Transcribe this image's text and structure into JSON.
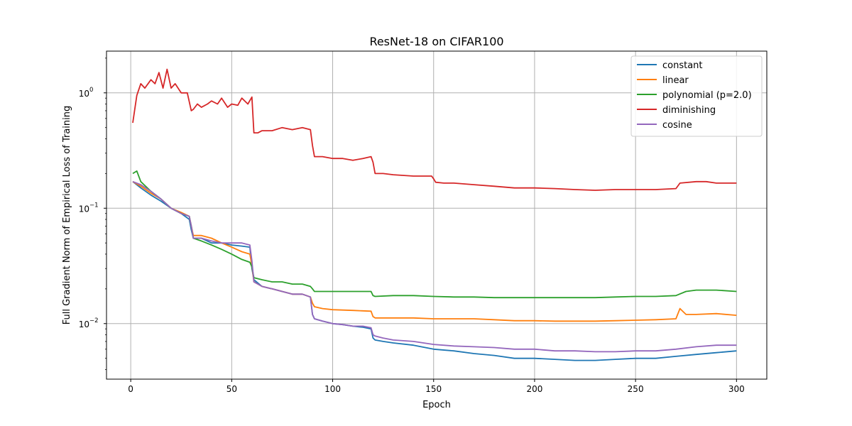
{
  "chart_data": {
    "type": "line",
    "title": "ResNet-18 on CIFAR100",
    "xlabel": "Epoch",
    "ylabel": "Full Gradient Norm of Empirical Loss of Training",
    "yscale": "log",
    "xlim": [
      -12,
      315
    ],
    "ylim": [
      0.0033,
      2.3
    ],
    "xticks": [
      0,
      50,
      100,
      150,
      200,
      250,
      300
    ],
    "xtick_labels": [
      "0",
      "50",
      "100",
      "150",
      "200",
      "250",
      "300"
    ],
    "yticks": [
      0.01,
      0.1,
      1
    ],
    "ytick_labels": [
      "10",
      "10",
      "10"
    ],
    "ytick_exponents": [
      "−2",
      "−1",
      "0"
    ],
    "grid": true,
    "legend": "top-right",
    "series": [
      {
        "name": "constant",
        "color": "#1f77b4",
        "x": [
          1,
          5,
          10,
          15,
          20,
          25,
          29,
          30,
          31,
          35,
          40,
          45,
          50,
          55,
          59,
          60,
          61,
          65,
          70,
          75,
          80,
          85,
          89,
          90,
          91,
          95,
          100,
          105,
          110,
          115,
          119,
          120,
          121,
          125,
          130,
          140,
          150,
          160,
          170,
          180,
          190,
          200,
          210,
          220,
          230,
          240,
          250,
          260,
          270,
          280,
          290,
          300
        ],
        "y": [
          0.17,
          0.15,
          0.13,
          0.115,
          0.1,
          0.09,
          0.08,
          0.065,
          0.055,
          0.055,
          0.05,
          0.05,
          0.048,
          0.047,
          0.046,
          0.03,
          0.024,
          0.021,
          0.02,
          0.019,
          0.018,
          0.018,
          0.017,
          0.012,
          0.011,
          0.0105,
          0.01,
          0.0098,
          0.0095,
          0.0093,
          0.009,
          0.0075,
          0.0072,
          0.007,
          0.0068,
          0.0065,
          0.006,
          0.0058,
          0.0055,
          0.0053,
          0.005,
          0.005,
          0.0049,
          0.0048,
          0.0048,
          0.0049,
          0.005,
          0.005,
          0.0052,
          0.0054,
          0.0056,
          0.0058
        ]
      },
      {
        "name": "linear",
        "color": "#ff7f0e",
        "x": [
          1,
          5,
          10,
          15,
          20,
          25,
          29,
          30,
          31,
          35,
          40,
          45,
          50,
          55,
          59,
          60,
          61,
          65,
          70,
          75,
          80,
          85,
          89,
          90,
          91,
          95,
          100,
          110,
          119,
          120,
          121,
          130,
          140,
          150,
          160,
          170,
          180,
          190,
          200,
          210,
          220,
          230,
          240,
          250,
          260,
          270,
          272,
          275,
          280,
          290,
          300
        ],
        "y": [
          0.17,
          0.155,
          0.135,
          0.12,
          0.1,
          0.092,
          0.085,
          0.07,
          0.058,
          0.058,
          0.055,
          0.05,
          0.046,
          0.042,
          0.04,
          0.032,
          0.023,
          0.021,
          0.02,
          0.019,
          0.018,
          0.018,
          0.017,
          0.015,
          0.014,
          0.0135,
          0.0132,
          0.013,
          0.0128,
          0.0115,
          0.0112,
          0.0112,
          0.0112,
          0.011,
          0.011,
          0.011,
          0.0108,
          0.0106,
          0.0106,
          0.0105,
          0.0105,
          0.0105,
          0.0106,
          0.0107,
          0.0108,
          0.011,
          0.0135,
          0.012,
          0.012,
          0.0122,
          0.0118
        ]
      },
      {
        "name": "polynomial (p=2.0)",
        "color": "#2ca02c",
        "x": [
          1,
          3,
          5,
          10,
          15,
          20,
          25,
          29,
          30,
          31,
          35,
          40,
          45,
          50,
          55,
          59,
          60,
          61,
          65,
          70,
          75,
          80,
          85,
          89,
          90,
          91,
          95,
          100,
          110,
          119,
          120,
          121,
          130,
          140,
          150,
          160,
          170,
          180,
          190,
          200,
          210,
          220,
          230,
          240,
          250,
          260,
          270,
          275,
          280,
          290,
          300
        ],
        "y": [
          0.2,
          0.21,
          0.17,
          0.14,
          0.12,
          0.1,
          0.09,
          0.085,
          0.07,
          0.055,
          0.052,
          0.048,
          0.044,
          0.04,
          0.036,
          0.034,
          0.031,
          0.025,
          0.024,
          0.023,
          0.023,
          0.022,
          0.022,
          0.021,
          0.02,
          0.019,
          0.019,
          0.019,
          0.019,
          0.019,
          0.0175,
          0.0172,
          0.0175,
          0.0175,
          0.0172,
          0.017,
          0.017,
          0.0168,
          0.0168,
          0.0168,
          0.0168,
          0.0168,
          0.0168,
          0.017,
          0.0172,
          0.0172,
          0.0175,
          0.019,
          0.0195,
          0.0195,
          0.019
        ]
      },
      {
        "name": "diminishing",
        "color": "#d62728",
        "x": [
          1,
          3,
          5,
          7,
          10,
          12,
          14,
          16,
          18,
          20,
          22,
          25,
          28,
          30,
          31,
          33,
          35,
          38,
          40,
          43,
          45,
          48,
          50,
          53,
          55,
          58,
          60,
          61,
          63,
          65,
          70,
          75,
          80,
          85,
          89,
          90,
          91,
          95,
          100,
          105,
          110,
          115,
          119,
          120,
          121,
          125,
          130,
          140,
          149,
          150,
          151,
          155,
          160,
          170,
          180,
          190,
          200,
          210,
          220,
          230,
          240,
          250,
          260,
          270,
          272,
          280,
          285,
          290,
          300
        ],
        "y": [
          0.55,
          0.95,
          1.2,
          1.1,
          1.3,
          1.2,
          1.5,
          1.1,
          1.6,
          1.1,
          1.2,
          1.0,
          1.0,
          0.7,
          0.72,
          0.8,
          0.75,
          0.8,
          0.85,
          0.8,
          0.9,
          0.75,
          0.8,
          0.78,
          0.9,
          0.8,
          0.92,
          0.45,
          0.45,
          0.47,
          0.47,
          0.5,
          0.48,
          0.5,
          0.48,
          0.35,
          0.28,
          0.28,
          0.27,
          0.27,
          0.26,
          0.27,
          0.28,
          0.25,
          0.2,
          0.2,
          0.195,
          0.19,
          0.19,
          0.18,
          0.168,
          0.165,
          0.165,
          0.16,
          0.155,
          0.15,
          0.15,
          0.148,
          0.145,
          0.143,
          0.145,
          0.145,
          0.145,
          0.148,
          0.165,
          0.17,
          0.17,
          0.165,
          0.165
        ]
      },
      {
        "name": "cosine",
        "color": "#9467bd",
        "x": [
          1,
          5,
          10,
          15,
          20,
          25,
          29,
          30,
          31,
          35,
          40,
          45,
          50,
          55,
          59,
          60,
          61,
          65,
          70,
          75,
          80,
          85,
          89,
          90,
          91,
          95,
          100,
          105,
          110,
          115,
          119,
          120,
          121,
          125,
          130,
          140,
          150,
          160,
          170,
          180,
          190,
          200,
          210,
          220,
          230,
          240,
          250,
          260,
          270,
          280,
          290,
          300
        ],
        "y": [
          0.17,
          0.16,
          0.14,
          0.12,
          0.1,
          0.09,
          0.085,
          0.07,
          0.055,
          0.055,
          0.052,
          0.05,
          0.05,
          0.05,
          0.048,
          0.035,
          0.023,
          0.021,
          0.02,
          0.019,
          0.018,
          0.018,
          0.017,
          0.012,
          0.011,
          0.0105,
          0.01,
          0.0098,
          0.0095,
          0.0095,
          0.0092,
          0.008,
          0.0078,
          0.0075,
          0.0072,
          0.007,
          0.0066,
          0.0064,
          0.0063,
          0.0062,
          0.006,
          0.006,
          0.0058,
          0.0058,
          0.0057,
          0.0057,
          0.0058,
          0.0058,
          0.006,
          0.0063,
          0.0065,
          0.0065
        ]
      }
    ]
  }
}
